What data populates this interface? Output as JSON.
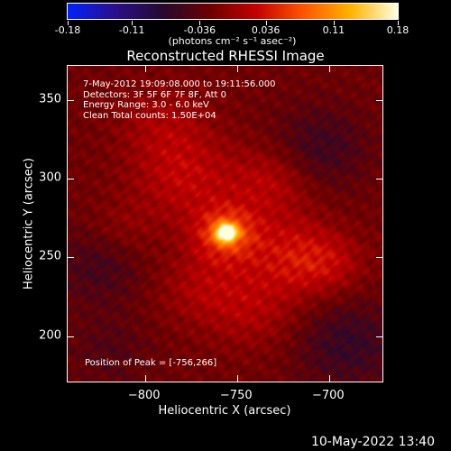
{
  "colorbar": {
    "tick_labels": [
      "-0.18",
      "-0.11",
      "-0.036",
      "0.036",
      "0.11",
      "0.18"
    ],
    "tick_values": [
      -0.18,
      -0.11,
      -0.036,
      0.036,
      0.11,
      0.18
    ],
    "range": [
      -0.18,
      0.18
    ],
    "units_text": "(photons cm⁻² s⁻¹ asec⁻²)",
    "colors": [
      "#0022ff",
      "#2a0f8a",
      "#250a30",
      "#6b0000",
      "#c40000",
      "#ff5500",
      "#ffb300",
      "#ffffe0"
    ]
  },
  "title": "Reconstructed RHESSI Image",
  "info": {
    "line1": "7-May-2012 19:09:08.000 to 19:11:56.000",
    "line2": "Detectors: 3F 5F 6F 7F 8F, Att 0",
    "line3": "Energy Range: 3.0 - 6.0 keV",
    "line4": "Clean     Total counts: 1.50E+04"
  },
  "peak_label": "Position of Peak = [-756,266]",
  "axes": {
    "xlabel": "Heliocentric X (arcsec)",
    "ylabel": "Heliocentric Y (arcsec)",
    "xlim": [
      -842,
      -671
    ],
    "ylim": [
      171,
      372
    ],
    "xticks": [
      -800,
      -750,
      -700
    ],
    "xtick_labels": [
      "−800",
      "−750",
      "−700"
    ],
    "yticks": [
      200,
      250,
      300,
      350
    ],
    "ytick_labels": [
      "200",
      "250",
      "300",
      "350"
    ]
  },
  "timestamp": "10-May-2022 13:40",
  "chart_data": {
    "type": "heatmap",
    "title": "Reconstructed RHESSI Image",
    "xlabel": "Heliocentric X (arcsec)",
    "ylabel": "Heliocentric Y (arcsec)",
    "xlim": [
      -842,
      -671
    ],
    "ylim": [
      171,
      372
    ],
    "value_range": [
      -0.18,
      0.18
    ],
    "units": "photons cm^-2 s^-1 asec^-2",
    "peak": {
      "x": -756,
      "y": 266,
      "value": 0.18
    },
    "emission_blobs": [
      {
        "x": -756,
        "y": 266,
        "sigma": 4,
        "value": 0.18
      },
      {
        "x": -756,
        "y": 266,
        "sigma": 12,
        "value": 0.085
      },
      {
        "x": -778,
        "y": 300,
        "sigma": 20,
        "value": 0.045
      },
      {
        "x": -732,
        "y": 298,
        "sigma": 16,
        "value": 0.04
      },
      {
        "x": -722,
        "y": 252,
        "sigma": 18,
        "value": 0.05
      },
      {
        "x": -700,
        "y": 246,
        "sigma": 14,
        "value": 0.035
      },
      {
        "x": -768,
        "y": 232,
        "sigma": 18,
        "value": 0.035
      },
      {
        "x": -790,
        "y": 335,
        "sigma": 18,
        "value": 0.03
      },
      {
        "x": -740,
        "y": 215,
        "sigma": 18,
        "value": 0.03
      },
      {
        "x": -812,
        "y": 268,
        "sigma": 14,
        "value": 0.02
      },
      {
        "x": -705,
        "y": 320,
        "sigma": 18,
        "value": -0.035
      },
      {
        "x": -825,
        "y": 245,
        "sigma": 18,
        "value": -0.03
      },
      {
        "x": -690,
        "y": 195,
        "sigma": 20,
        "value": -0.04
      },
      {
        "x": -820,
        "y": 190,
        "sigma": 16,
        "value": -0.02
      }
    ]
  }
}
